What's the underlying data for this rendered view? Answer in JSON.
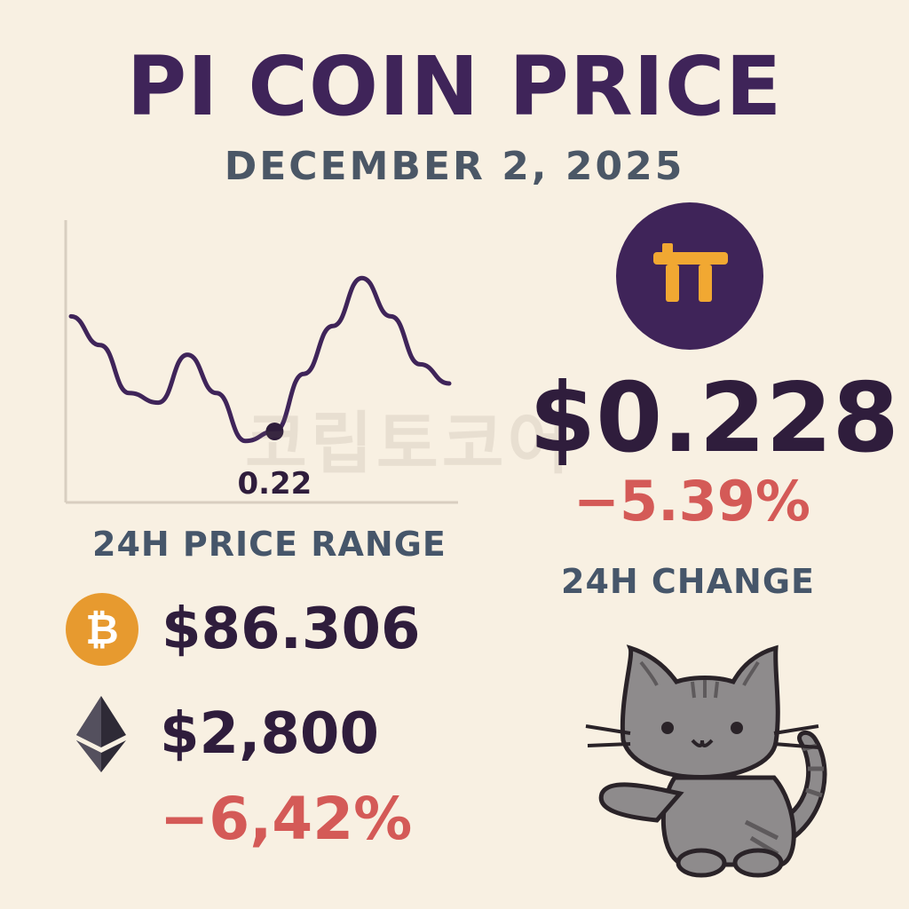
{
  "header": {
    "title": "PI COIN PRICE",
    "date": "DECEMBER 2, 2025"
  },
  "chart_data": {
    "type": "line",
    "series": [
      {
        "values": [
          0.232,
          0.229,
          0.224,
          0.223,
          0.228,
          0.224,
          0.219,
          0.22,
          0.226,
          0.231,
          0.236,
          0.232,
          0.227,
          0.225
        ]
      }
    ],
    "annotations": [
      {
        "index": 7,
        "label": "0.22"
      }
    ],
    "grid": false
  },
  "range_label": "24H PRICE RANGE",
  "coins": {
    "btc": {
      "icon": "bitcoin-icon",
      "symbol": "₿",
      "value": "$86.306",
      "color": "#e79a2f"
    },
    "eth": {
      "icon": "ethereum-icon",
      "value": "$2,800",
      "change": "−6,42%"
    }
  },
  "pi": {
    "icon": "pi-network-logo-icon",
    "price": "$0.228",
    "change": "−5.39%",
    "change_label": "24H CHANGE",
    "logo_bg": "#3f2459",
    "logo_fg": "#f1a832"
  },
  "watermark": "코립토코어",
  "colors": {
    "background": "#f8f0e2",
    "title": "#3f2459",
    "negative": "#d45a57",
    "label": "#46566a"
  }
}
